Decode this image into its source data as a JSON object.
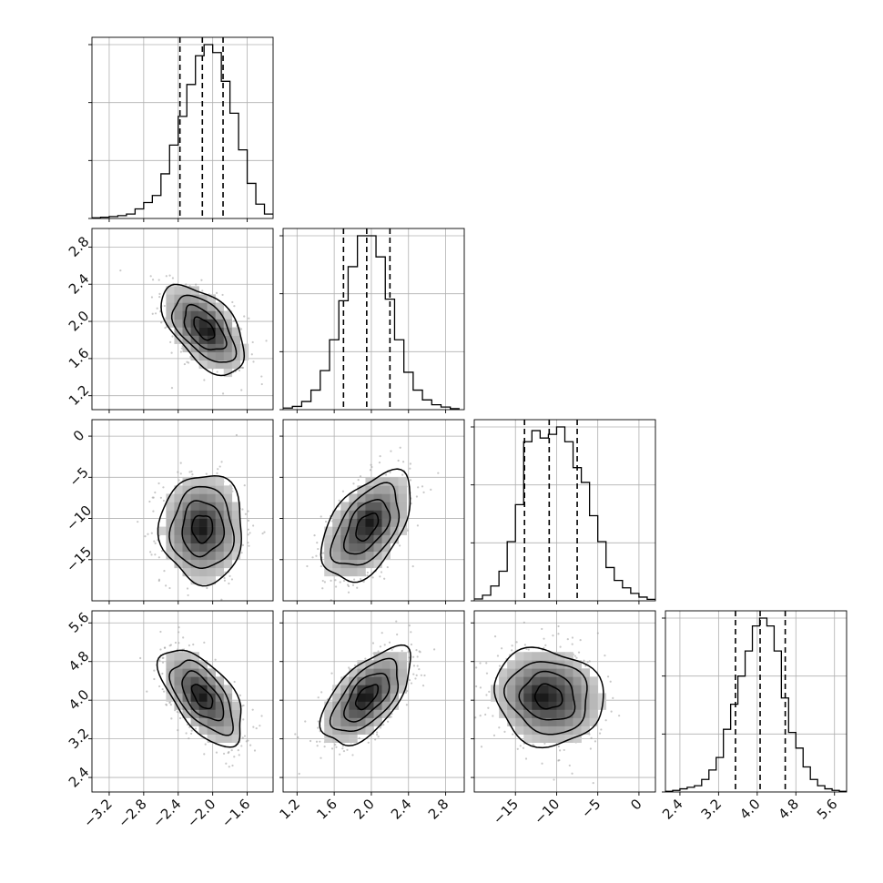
{
  "chart_data": {
    "type": "corner",
    "title": "",
    "parameters": [
      {
        "label": "",
        "range": [
          -3.4,
          -1.3
        ],
        "ticks": [
          -3.2,
          -2.8,
          -2.4,
          -2.0,
          -1.6
        ],
        "tick_labels": [
          "−3.2",
          "−2.8",
          "−2.4",
          "−2.0",
          "−1.6"
        ],
        "quantiles": [
          -2.38,
          -2.12,
          -1.88
        ]
      },
      {
        "label": "",
        "range": [
          1.05,
          3.0
        ],
        "ticks": [
          1.2,
          1.6,
          2.0,
          2.4,
          2.8
        ],
        "tick_labels": [
          "1.2",
          "1.6",
          "2.0",
          "2.4",
          "2.8"
        ],
        "quantiles": [
          1.7,
          1.95,
          2.2
        ]
      },
      {
        "label": "",
        "range": [
          -20.0,
          2.0
        ],
        "ticks": [
          -15,
          -10,
          -5,
          0
        ],
        "tick_labels": [
          "−15",
          "−10",
          "−5",
          "0"
        ],
        "quantiles": [
          -13.9,
          -10.9,
          -7.5
        ]
      },
      {
        "label": "",
        "range": [
          2.1,
          5.85
        ],
        "ticks": [
          2.4,
          3.2,
          4.0,
          4.8,
          5.6
        ],
        "tick_labels": [
          "2.4",
          "3.2",
          "4.0",
          "4.8",
          "5.6"
        ],
        "quantiles": [
          3.55,
          4.06,
          4.58
        ]
      }
    ],
    "histograms": [
      {
        "param": 0,
        "bins": [
          -3.4,
          -3.3,
          -3.2,
          -3.1,
          -3.0,
          -2.9,
          -2.8,
          -2.7,
          -2.6,
          -2.5,
          -2.4,
          -2.3,
          -2.2,
          -2.1,
          -2.0,
          -1.9,
          -1.8,
          -1.7,
          -1.6,
          -1.5,
          -1.4,
          -1.3
        ],
        "counts": [
          2,
          4,
          6,
          9,
          14,
          30,
          50,
          72,
          140,
          230,
          320,
          420,
          510,
          545,
          520,
          430,
          330,
          215,
          110,
          45,
          14
        ]
      },
      {
        "param": 1,
        "bins": [
          1.05,
          1.15,
          1.25,
          1.35,
          1.45,
          1.55,
          1.65,
          1.75,
          1.85,
          1.95,
          2.05,
          2.15,
          2.25,
          2.35,
          2.45,
          2.55,
          2.65,
          2.75,
          2.85,
          2.95
        ],
        "counts": [
          5,
          10,
          25,
          60,
          120,
          215,
          335,
          440,
          535,
          535,
          470,
          340,
          215,
          115,
          60,
          30,
          15,
          8,
          3
        ]
      },
      {
        "param": 2,
        "bins": [
          -20,
          -19,
          -18,
          -17,
          -16,
          -15,
          -14,
          -13,
          -12,
          -11,
          -10,
          -9,
          -8,
          -7,
          -6,
          -5,
          -4,
          -3,
          -2,
          -1,
          0,
          1,
          2
        ],
        "counts": [
          5,
          15,
          40,
          80,
          160,
          260,
          430,
          460,
          440,
          450,
          470,
          430,
          360,
          320,
          230,
          160,
          90,
          55,
          35,
          20,
          10,
          4
        ]
      },
      {
        "param": 3,
        "bins": [
          2.1,
          2.25,
          2.4,
          2.55,
          2.7,
          2.85,
          3.0,
          3.15,
          3.3,
          3.45,
          3.6,
          3.75,
          3.9,
          4.05,
          4.2,
          4.35,
          4.5,
          4.65,
          4.8,
          4.95,
          5.1,
          5.25,
          5.4,
          5.55,
          5.7,
          5.85
        ],
        "counts": [
          2,
          5,
          10,
          15,
          20,
          40,
          70,
          110,
          200,
          280,
          370,
          450,
          530,
          555,
          530,
          450,
          300,
          190,
          140,
          80,
          40,
          20,
          10,
          5,
          2
        ]
      }
    ],
    "pairs": [
      {
        "x_param": 0,
        "y_param": 1,
        "center": [
          -2.1,
          1.92
        ],
        "sigma": [
          0.24,
          0.24
        ],
        "correlation": -0.55,
        "mode": [
          -2.02,
          1.9
        ]
      },
      {
        "x_param": 0,
        "y_param": 2,
        "center": [
          -2.12,
          -11.2
        ],
        "sigma": [
          0.24,
          3.3
        ],
        "correlation": 0.0,
        "mode": [
          -2.15,
          -11.2
        ]
      },
      {
        "x_param": 1,
        "y_param": 2,
        "center": [
          1.95,
          -11.0
        ],
        "sigma": [
          0.24,
          3.3
        ],
        "correlation": 0.5,
        "mode": [
          2.0,
          -10.2
        ]
      },
      {
        "x_param": 0,
        "y_param": 3,
        "center": [
          -2.12,
          4.07
        ],
        "sigma": [
          0.24,
          0.5
        ],
        "correlation": -0.6,
        "mode": [
          -2.15,
          4.1
        ]
      },
      {
        "x_param": 1,
        "y_param": 3,
        "center": [
          1.95,
          4.07
        ],
        "sigma": [
          0.24,
          0.5
        ],
        "correlation": 0.6,
        "mode": [
          1.92,
          4.07
        ]
      },
      {
        "x_param": 2,
        "y_param": 3,
        "center": [
          -11.0,
          4.07
        ],
        "sigma": [
          3.3,
          0.5
        ],
        "correlation": -0.1,
        "mode": [
          -12.5,
          4.05
        ]
      }
    ],
    "contour_levels_sigma": [
      0.5,
      1.0,
      1.5,
      2.0
    ],
    "grid": true,
    "colors": {
      "line": "#000000",
      "grid": "#b0b0b0",
      "scatter": "#9a9a9a",
      "density_min": "#f2f2f2",
      "density_max": "#1a1a1a"
    }
  }
}
